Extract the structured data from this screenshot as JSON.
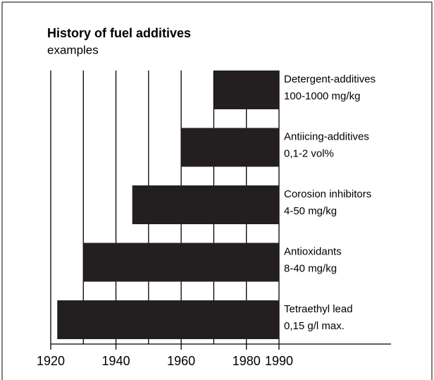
{
  "chart_data": {
    "type": "floating-bar",
    "title": "History of fuel additives",
    "subtitle": "examples",
    "categories": [
      "Detergent-additives",
      "Antiicing-additives",
      "Corosion inhibitors",
      "Antioxidants",
      "Tetraethyl lead"
    ],
    "dosages": [
      "100-1000 mg/kg",
      "0,1-2 vol%",
      "4-50 mg/kg",
      "8-40 mg/kg",
      "0,15 g/l max."
    ],
    "start": [
      1970,
      1960,
      1945,
      1930,
      1922
    ],
    "end": [
      1990,
      1990,
      1990,
      1990,
      1990
    ],
    "color": "#231f20",
    "xlim": [
      1920,
      1990
    ],
    "xticks": [
      1920,
      1940,
      1960,
      1980,
      1990
    ],
    "xgrid": [
      1920,
      1930,
      1940,
      1950,
      1960,
      1970,
      1980,
      1990
    ]
  }
}
